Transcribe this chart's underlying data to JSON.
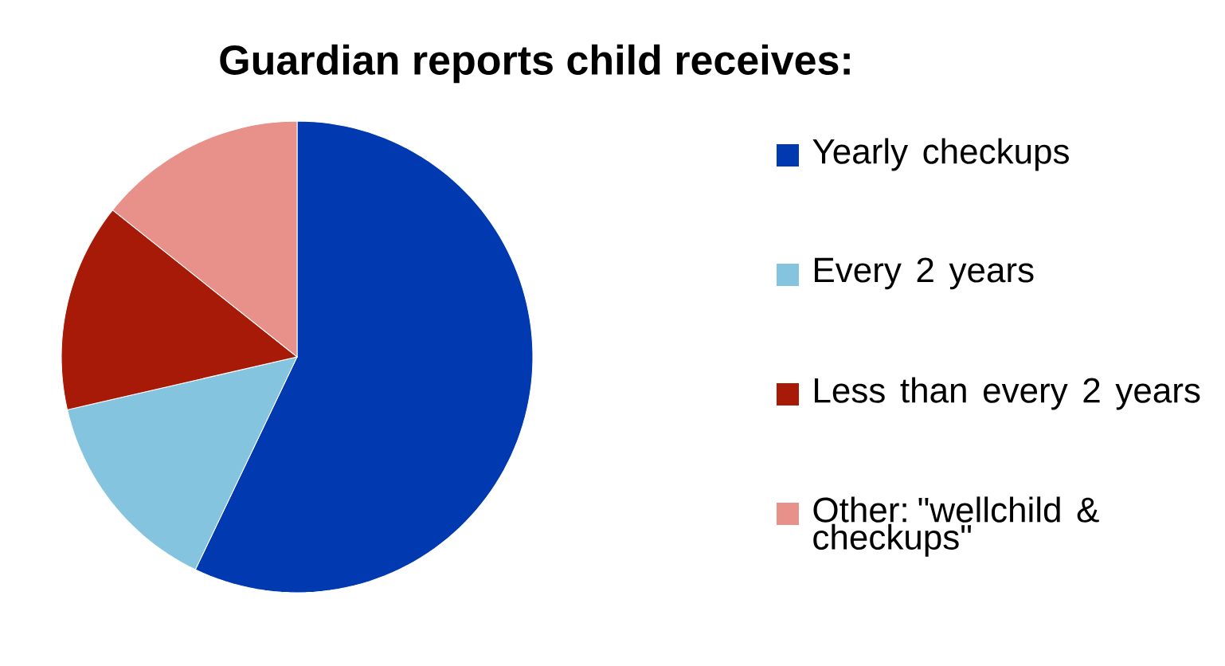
{
  "chart_data": {
    "type": "pie",
    "title": "Guardian reports child receives:",
    "categories": [
      "Yearly checkups",
      "Every 2 years",
      "Less than every 2 years",
      "Other: \"wellchild & checkups\""
    ],
    "values": [
      57.1,
      14.3,
      14.3,
      14.3
    ],
    "colors": [
      "#0039b0",
      "#85c4de",
      "#a81a08",
      "#e8908a"
    ],
    "legend": "right"
  }
}
